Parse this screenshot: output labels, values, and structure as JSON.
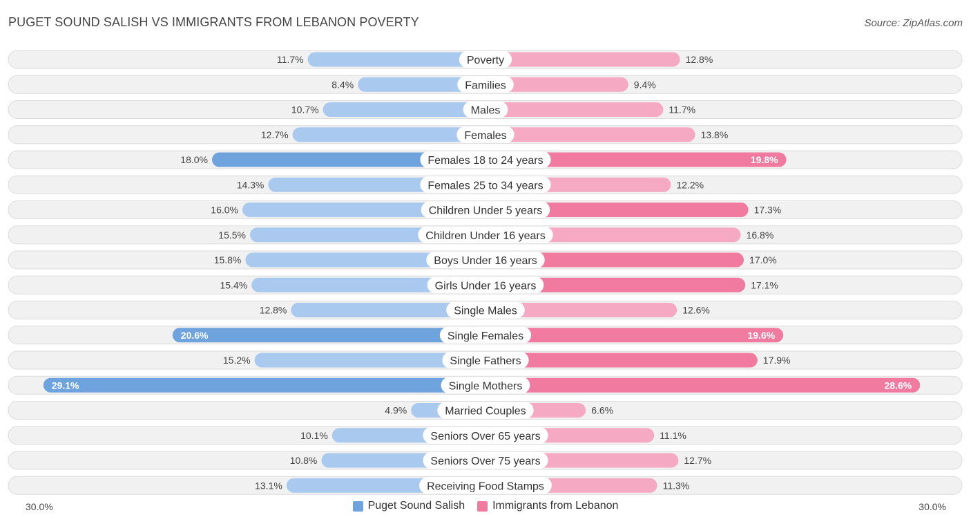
{
  "title": "PUGET SOUND SALISH VS IMMIGRANTS FROM LEBANON POVERTY",
  "source": "Source: ZipAtlas.com",
  "colors": {
    "left": "#6fa3de",
    "left_light": "#a9c9ee",
    "right": "#f07aa0",
    "right_light": "#f6a9c2"
  },
  "axis": {
    "left_label": "30.0%",
    "right_label": "30.0%"
  },
  "legend": [
    {
      "label": "Puget Sound Salish",
      "color": "#6fa3de"
    },
    {
      "label": "Immigrants from Lebanon",
      "color": "#f07aa0"
    }
  ],
  "chart_data": {
    "type": "bar",
    "orientation": "diverging-horizontal",
    "title": "PUGET SOUND SALISH VS IMMIGRANTS FROM LEBANON POVERTY",
    "xlim": [
      -30,
      30
    ],
    "unit": "%",
    "categories": [
      "Poverty",
      "Families",
      "Males",
      "Females",
      "Females 18 to 24 years",
      "Females 25 to 34 years",
      "Children Under 5 years",
      "Children Under 16 years",
      "Boys Under 16 years",
      "Girls Under 16 years",
      "Single Males",
      "Single Females",
      "Single Fathers",
      "Single Mothers",
      "Married Couples",
      "Seniors Over 65 years",
      "Seniors Over 75 years",
      "Receiving Food Stamps"
    ],
    "series": [
      {
        "name": "Puget Sound Salish",
        "values": [
          11.7,
          8.4,
          10.7,
          12.7,
          18.0,
          14.3,
          16.0,
          15.5,
          15.8,
          15.4,
          12.8,
          20.6,
          15.2,
          29.1,
          4.9,
          10.1,
          10.8,
          13.1
        ],
        "labels": [
          "11.7%",
          "8.4%",
          "10.7%",
          "12.7%",
          "18.0%",
          "14.3%",
          "16.0%",
          "15.5%",
          "15.8%",
          "15.4%",
          "12.8%",
          "20.6%",
          "15.2%",
          "29.1%",
          "4.9%",
          "10.1%",
          "10.8%",
          "13.1%"
        ]
      },
      {
        "name": "Immigrants from Lebanon",
        "values": [
          12.8,
          9.4,
          11.7,
          13.8,
          19.8,
          12.2,
          17.3,
          16.8,
          17.0,
          17.1,
          12.6,
          19.6,
          17.9,
          28.6,
          6.6,
          11.1,
          12.7,
          11.3
        ],
        "labels": [
          "12.8%",
          "9.4%",
          "11.7%",
          "13.8%",
          "19.8%",
          "12.2%",
          "17.3%",
          "16.8%",
          "17.0%",
          "17.1%",
          "12.6%",
          "19.6%",
          "17.9%",
          "28.6%",
          "6.6%",
          "11.1%",
          "12.7%",
          "11.3%"
        ]
      }
    ]
  }
}
